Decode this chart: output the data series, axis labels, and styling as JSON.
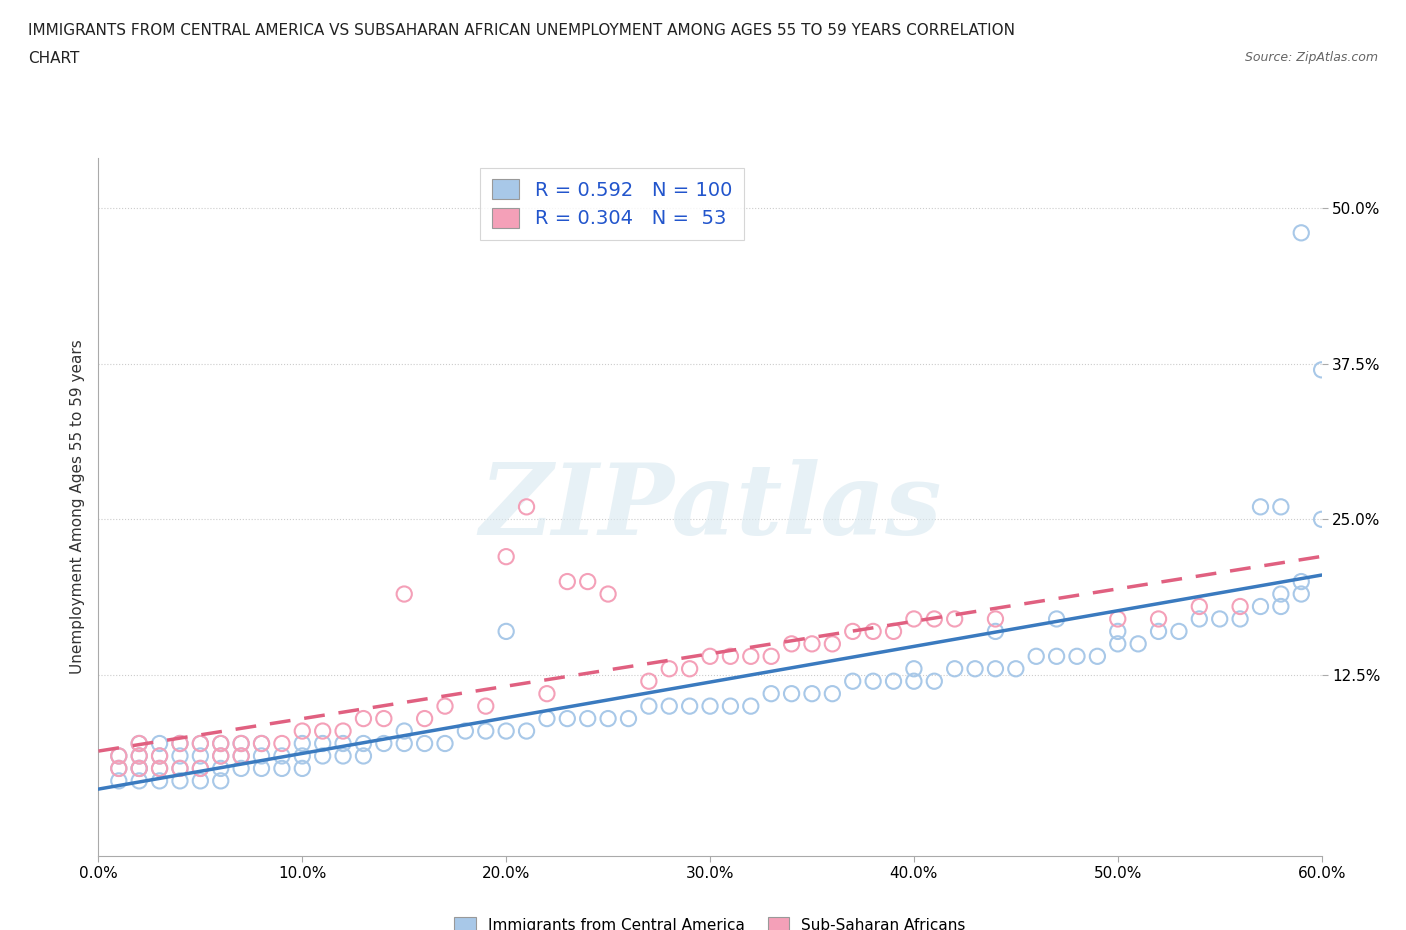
{
  "title_line1": "IMMIGRANTS FROM CENTRAL AMERICA VS SUBSAHARAN AFRICAN UNEMPLOYMENT AMONG AGES 55 TO 59 YEARS CORRELATION",
  "title_line2": "CHART",
  "source": "Source: ZipAtlas.com",
  "ylabel": "Unemployment Among Ages 55 to 59 years",
  "legend_label_1": "Immigrants from Central America",
  "legend_label_2": "Sub-Saharan Africans",
  "R1": 0.592,
  "N1": 100,
  "R2": 0.304,
  "N2": 53,
  "color1": "#a8c8e8",
  "color2": "#f4a0b8",
  "line_color1": "#3a7abf",
  "line_color2": "#e06080",
  "xmin": 0.0,
  "xmax": 0.6,
  "ymin": -0.02,
  "ymax": 0.54,
  "yticks": [
    0.0,
    0.125,
    0.25,
    0.375,
    0.5
  ],
  "xticks": [
    0.0,
    0.1,
    0.2,
    0.3,
    0.4,
    0.5,
    0.6
  ],
  "watermark": "ZIPatlas",
  "background_color": "#ffffff",
  "scatter1_x": [
    0.01,
    0.01,
    0.01,
    0.02,
    0.02,
    0.02,
    0.02,
    0.02,
    0.03,
    0.03,
    0.03,
    0.03,
    0.04,
    0.04,
    0.04,
    0.04,
    0.05,
    0.05,
    0.05,
    0.05,
    0.06,
    0.06,
    0.06,
    0.06,
    0.07,
    0.07,
    0.07,
    0.08,
    0.08,
    0.08,
    0.09,
    0.09,
    0.1,
    0.1,
    0.1,
    0.11,
    0.11,
    0.12,
    0.12,
    0.13,
    0.13,
    0.14,
    0.15,
    0.15,
    0.16,
    0.17,
    0.18,
    0.19,
    0.2,
    0.2,
    0.21,
    0.22,
    0.23,
    0.24,
    0.25,
    0.26,
    0.27,
    0.28,
    0.29,
    0.3,
    0.31,
    0.32,
    0.33,
    0.34,
    0.35,
    0.36,
    0.37,
    0.38,
    0.39,
    0.4,
    0.4,
    0.41,
    0.42,
    0.43,
    0.44,
    0.44,
    0.45,
    0.46,
    0.47,
    0.47,
    0.48,
    0.49,
    0.5,
    0.5,
    0.51,
    0.52,
    0.53,
    0.54,
    0.55,
    0.56,
    0.57,
    0.57,
    0.58,
    0.58,
    0.58,
    0.59,
    0.59,
    0.59,
    0.6,
    0.6
  ],
  "scatter1_y": [
    0.04,
    0.05,
    0.06,
    0.04,
    0.05,
    0.05,
    0.06,
    0.07,
    0.04,
    0.05,
    0.06,
    0.07,
    0.04,
    0.05,
    0.06,
    0.07,
    0.04,
    0.05,
    0.06,
    0.07,
    0.04,
    0.05,
    0.06,
    0.07,
    0.05,
    0.06,
    0.07,
    0.05,
    0.06,
    0.07,
    0.05,
    0.06,
    0.05,
    0.06,
    0.07,
    0.06,
    0.07,
    0.06,
    0.07,
    0.06,
    0.07,
    0.07,
    0.07,
    0.08,
    0.07,
    0.07,
    0.08,
    0.08,
    0.08,
    0.16,
    0.08,
    0.09,
    0.09,
    0.09,
    0.09,
    0.09,
    0.1,
    0.1,
    0.1,
    0.1,
    0.1,
    0.1,
    0.11,
    0.11,
    0.11,
    0.11,
    0.12,
    0.12,
    0.12,
    0.12,
    0.13,
    0.12,
    0.13,
    0.13,
    0.13,
    0.16,
    0.13,
    0.14,
    0.14,
    0.17,
    0.14,
    0.14,
    0.15,
    0.16,
    0.15,
    0.16,
    0.16,
    0.17,
    0.17,
    0.17,
    0.18,
    0.26,
    0.18,
    0.19,
    0.26,
    0.19,
    0.2,
    0.48,
    0.25,
    0.37
  ],
  "scatter2_x": [
    0.01,
    0.01,
    0.02,
    0.02,
    0.02,
    0.03,
    0.03,
    0.04,
    0.04,
    0.05,
    0.05,
    0.06,
    0.06,
    0.07,
    0.07,
    0.08,
    0.09,
    0.1,
    0.11,
    0.12,
    0.13,
    0.14,
    0.15,
    0.16,
    0.17,
    0.19,
    0.2,
    0.21,
    0.22,
    0.23,
    0.24,
    0.25,
    0.27,
    0.28,
    0.29,
    0.3,
    0.31,
    0.32,
    0.33,
    0.34,
    0.35,
    0.36,
    0.37,
    0.38,
    0.39,
    0.4,
    0.41,
    0.42,
    0.44,
    0.5,
    0.52,
    0.54,
    0.56
  ],
  "scatter2_y": [
    0.05,
    0.06,
    0.05,
    0.06,
    0.07,
    0.05,
    0.06,
    0.05,
    0.07,
    0.05,
    0.07,
    0.06,
    0.07,
    0.06,
    0.07,
    0.07,
    0.07,
    0.08,
    0.08,
    0.08,
    0.09,
    0.09,
    0.19,
    0.09,
    0.1,
    0.1,
    0.22,
    0.26,
    0.11,
    0.2,
    0.2,
    0.19,
    0.12,
    0.13,
    0.13,
    0.14,
    0.14,
    0.14,
    0.14,
    0.15,
    0.15,
    0.15,
    0.16,
    0.16,
    0.16,
    0.17,
    0.17,
    0.17,
    0.17,
    0.17,
    0.17,
    0.18,
    0.18
  ]
}
